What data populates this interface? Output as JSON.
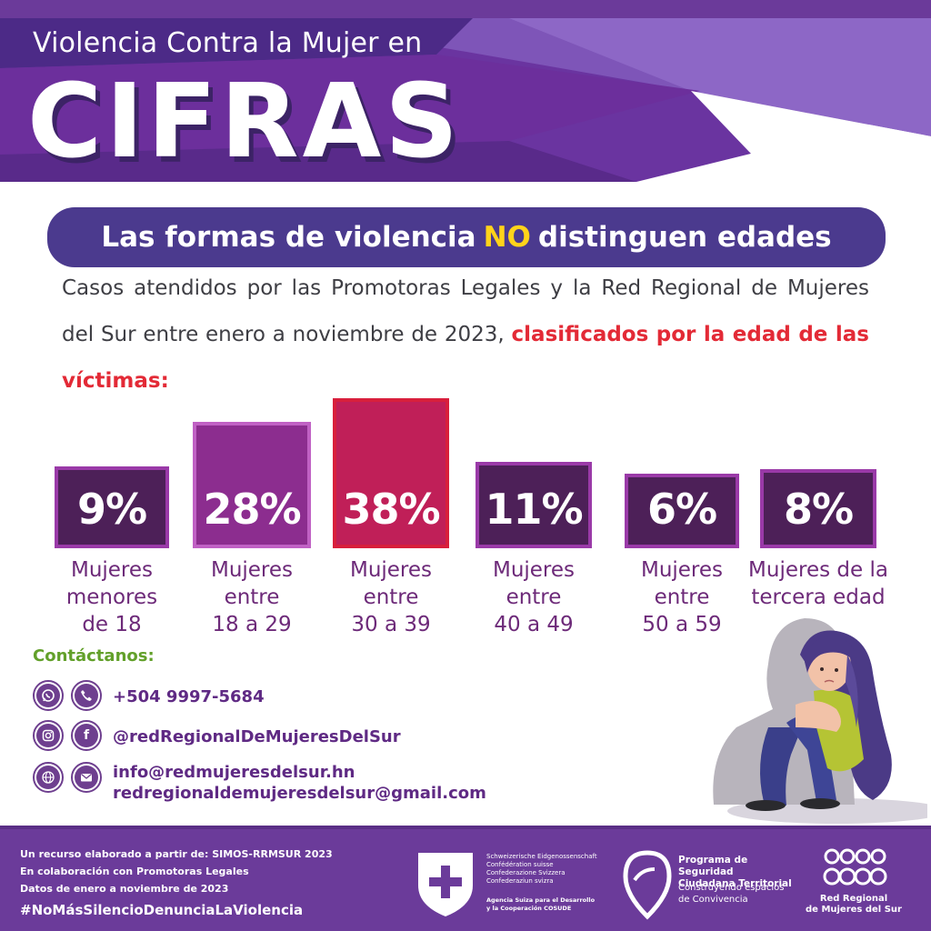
{
  "header": {
    "subtitle": "Violencia Contra la Mujer en",
    "title": "CIFRAS"
  },
  "banner": {
    "text_before": "Las formas de violencia",
    "highlight": "NO",
    "text_after": "distinguen edades"
  },
  "description": {
    "text": "Casos atendidos por las Promotoras Legales y la Red Regional de Mujeres del Sur entre enero a noviembre de 2023,",
    "highlight": "clasificados por la edad de las víctimas:"
  },
  "chart_data": {
    "type": "bar",
    "categories": [
      "Mujeres menores de 18",
      "Mujeres entre 18 a 29",
      "Mujeres entre 30 a 39",
      "Mujeres entre 40 a 49",
      "Mujeres entre 50 a 59",
      "Mujeres de la tercera edad"
    ],
    "values": [
      9,
      28,
      38,
      11,
      6,
      8
    ],
    "value_labels": [
      "9%",
      "28%",
      "38%",
      "11%",
      "6%",
      "8%"
    ],
    "category_lines": [
      [
        "Mujeres",
        "menores",
        "de 18"
      ],
      [
        "Mujeres",
        "entre",
        "18 a 29"
      ],
      [
        "Mujeres",
        "entre",
        "30 a 39"
      ],
      [
        "Mujeres",
        "entre",
        "40 a 49"
      ],
      [
        "Mujeres",
        "entre",
        "50 a 59"
      ],
      [
        "Mujeres de la",
        "tercera edad"
      ]
    ],
    "colors": [
      "#4d2058",
      "#8c2d8f",
      "#c01f58",
      "#4d2058",
      "#4d2058",
      "#4d2058"
    ]
  },
  "contact": {
    "title": "Contáctanos:",
    "phone": "+504 9997-5684",
    "social": "@redRegionalDeMujeresDelSur",
    "email_1": "info@redmujeresdelsur.hn",
    "email_2": "redregionaldemujeresdelsur@gmail.com",
    "icons": [
      "whatsapp-icon",
      "phone-icon",
      "instagram-icon",
      "facebook-icon",
      "web-icon",
      "mail-icon"
    ]
  },
  "footer": {
    "note_1": "Un recurso elaborado a partir de: SIMOS-RRMSUR 2023",
    "note_2": "En colaboración con Promotoras Legales",
    "note_3": "Datos de enero a noviembre de 2023",
    "hashtag": "#NoMásSilencioDenunciaLaViolencia",
    "swiss_lines": [
      "Schweizerische Eidgenossenschaft",
      "Confédération suisse",
      "Confederazione Svizzera",
      "Confederaziun svizra"
    ],
    "swiss_agency": [
      "Agencia Suiza para el Desarrollo",
      "y la Cooperación COSUDE"
    ],
    "program_title": [
      "Programa de Seguridad",
      "Ciudadana Territorial"
    ],
    "program_sub": [
      "Construyendo espacios",
      "de Convivencia"
    ],
    "red_name": [
      "Red Regional",
      "de Mujeres del Sur"
    ]
  },
  "colors": {
    "purple_dark": "#4d2058",
    "purple": "#8c2d8f",
    "crimson": "#c01f58",
    "banner": "#4b3a8e",
    "highlight": "#ffd31a",
    "red_text": "#e32a36",
    "green": "#62a02a",
    "footer": "#6b3b9a"
  }
}
